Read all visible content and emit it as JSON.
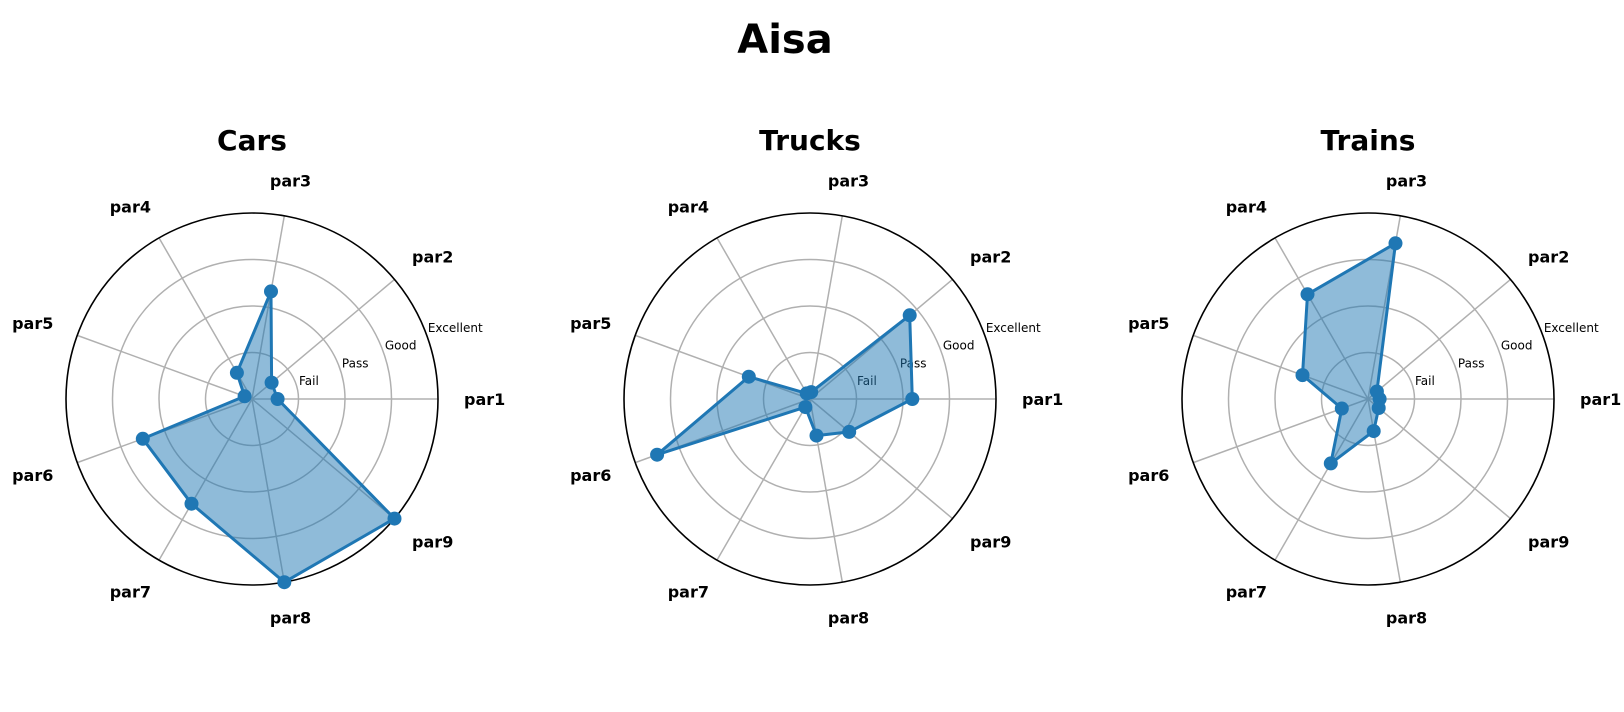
{
  "title": "Aisa",
  "chart_data": [
    {
      "type": "radar",
      "title": "Cars",
      "axes": [
        "par1",
        "par2",
        "par3",
        "par4",
        "par5",
        "par6",
        "par7",
        "par8",
        "par9"
      ],
      "ring_labels": [
        "Fail",
        "Pass",
        "Good",
        "Excellent"
      ],
      "rmax": 4,
      "grid": true,
      "values": [
        0.55,
        0.55,
        2.35,
        0.65,
        0.17,
        2.5,
        2.6,
        4.0,
        4.0
      ]
    },
    {
      "type": "radar",
      "title": "Trucks",
      "axes": [
        "par1",
        "par2",
        "par3",
        "par4",
        "par5",
        "par6",
        "par7",
        "par8",
        "par9"
      ],
      "ring_labels": [
        "Fail",
        "Pass",
        "Good",
        "Excellent"
      ],
      "rmax": 4,
      "grid": true,
      "values": [
        2.2,
        2.8,
        0.15,
        0.14,
        1.4,
        3.5,
        0.2,
        0.8,
        1.1
      ]
    },
    {
      "type": "radar",
      "title": "Trains",
      "axes": [
        "par1",
        "par2",
        "par3",
        "par4",
        "par5",
        "par6",
        "par7",
        "par8",
        "par9"
      ],
      "ring_labels": [
        "Fail",
        "Pass",
        "Good",
        "Excellent"
      ],
      "rmax": 4,
      "grid": true,
      "values": [
        0.25,
        0.25,
        3.4,
        2.6,
        1.5,
        0.6,
        1.6,
        0.7,
        0.3
      ]
    }
  ]
}
